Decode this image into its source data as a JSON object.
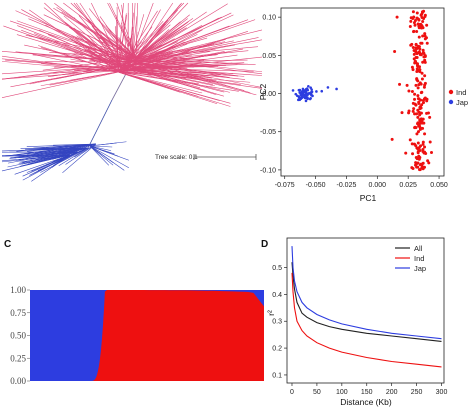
{
  "panels": {
    "C": "C",
    "D": "D"
  },
  "colors": {
    "ind": "#ee1010",
    "jap": "#2d3de0",
    "tree_pink": "#e0487a",
    "tree_blue": "#3445c0",
    "all": "#222222"
  },
  "chart_data": [
    {
      "panel": "tree",
      "type": "other",
      "scale_label": "Tree scale: 0.1"
    },
    {
      "panel": "PCA",
      "type": "scatter",
      "xlabel": "PC1",
      "ylabel": "PC2",
      "xlim": [
        -0.078,
        0.054
      ],
      "ylim": [
        -0.108,
        0.112
      ],
      "xticks": [
        -0.075,
        -0.05,
        -0.025,
        0.0,
        0.025,
        0.05
      ],
      "xtick_labels": [
        "-0.075",
        "-0.050",
        "-0.025",
        "0.000",
        "0.025",
        "0.050"
      ],
      "yticks": [
        0.1,
        0.05,
        0.0,
        -0.05,
        -0.1
      ],
      "ytick_labels": [
        "0.10",
        "0.05",
        "0.00",
        "-0.05",
        "-0.10"
      ],
      "legend": [
        "Ind",
        "Jap"
      ],
      "legend_position": "right",
      "series": [
        {
          "name": "Ind",
          "x_center": 0.034,
          "x_spread": 0.006,
          "y_range": [
            -0.1,
            0.11
          ],
          "n": 230,
          "outliers": [
            [
              0.016,
              0.1
            ],
            [
              0.014,
              0.055
            ],
            [
              0.018,
              0.012
            ],
            [
              0.02,
              -0.025
            ],
            [
              0.023,
              -0.078
            ],
            [
              0.012,
              -0.06
            ]
          ]
        },
        {
          "name": "Jap",
          "x_center": -0.058,
          "x_spread": 0.006,
          "y_center": 0.0,
          "y_spread": 0.004,
          "n": 70,
          "outliers": [
            [
              -0.04,
              0.008
            ],
            [
              -0.033,
              0.006
            ],
            [
              -0.045,
              0.003
            ]
          ]
        }
      ]
    },
    {
      "panel": "C",
      "type": "area",
      "ylim": [
        0,
        1
      ],
      "yticks": [
        0,
        0.25,
        0.5,
        0.75,
        1.0
      ],
      "ytick_labels": [
        "0.00",
        "0.25",
        "0.50",
        "0.75",
        "1.00"
      ],
      "jap_fraction": 0.32,
      "series": [
        "Jap",
        "Ind"
      ]
    },
    {
      "panel": "D",
      "type": "line",
      "xlabel": "Distance (Kb)",
      "ylabel": "r²",
      "xlim": [
        -10,
        305
      ],
      "ylim": [
        0.07,
        0.61
      ],
      "xticks": [
        0,
        50,
        100,
        150,
        200,
        250,
        300
      ],
      "yticks": [
        0.1,
        0.2,
        0.3,
        0.4,
        0.5
      ],
      "ytick_labels": [
        "0.1",
        "0.2",
        "0.3",
        "0.4",
        "0.5"
      ],
      "legend_position": "top-right",
      "x": [
        0,
        2,
        5,
        10,
        20,
        30,
        50,
        75,
        100,
        150,
        200,
        250,
        300
      ],
      "series": [
        {
          "name": "All",
          "values": [
            0.52,
            0.47,
            0.42,
            0.37,
            0.33,
            0.315,
            0.295,
            0.28,
            0.27,
            0.255,
            0.245,
            0.235,
            0.225
          ]
        },
        {
          "name": "Ind",
          "values": [
            0.48,
            0.41,
            0.35,
            0.3,
            0.265,
            0.245,
            0.22,
            0.2,
            0.185,
            0.165,
            0.15,
            0.14,
            0.13
          ]
        },
        {
          "name": "Jap",
          "values": [
            0.58,
            0.5,
            0.45,
            0.41,
            0.37,
            0.35,
            0.325,
            0.305,
            0.29,
            0.27,
            0.255,
            0.245,
            0.235
          ]
        }
      ]
    }
  ]
}
